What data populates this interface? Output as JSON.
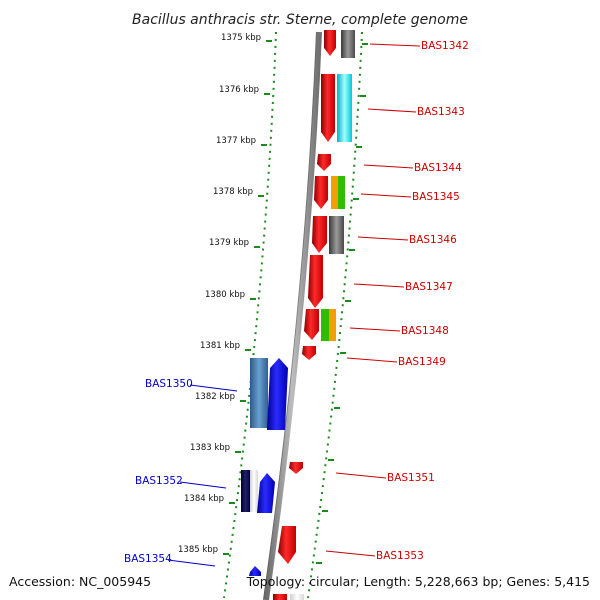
{
  "title": "Bacillus anthracis str. Sterne, complete genome",
  "footer": {
    "accession": "Accession: NC_005945",
    "topology": "Topology: circular; Length: 5,228,663 bp; Genes: 5,415"
  },
  "ticks": [
    "1375 kbp",
    "1376 kbp",
    "1377 kbp",
    "1378 kbp",
    "1379 kbp",
    "1380 kbp",
    "1381 kbp",
    "1382 kbp",
    "1383 kbp",
    "1384 kbp",
    "1385 kbp"
  ],
  "genes_right": [
    "BAS1342",
    "BAS1343",
    "BAS1344",
    "BAS1345",
    "BAS1346",
    "BAS1347",
    "BAS1348",
    "BAS1349",
    "BAS1351",
    "BAS1353"
  ],
  "genes_left": [
    "BAS1350",
    "BAS1352",
    "BAS1354"
  ],
  "colors": {
    "forward_gene": "#ff0000",
    "reverse_gene": "#0000ff",
    "gene_label_forward": "#cc0000",
    "gene_label_reverse": "#0000cc",
    "backbone": "#888888",
    "dotted_track": "#1a8a1a"
  }
}
